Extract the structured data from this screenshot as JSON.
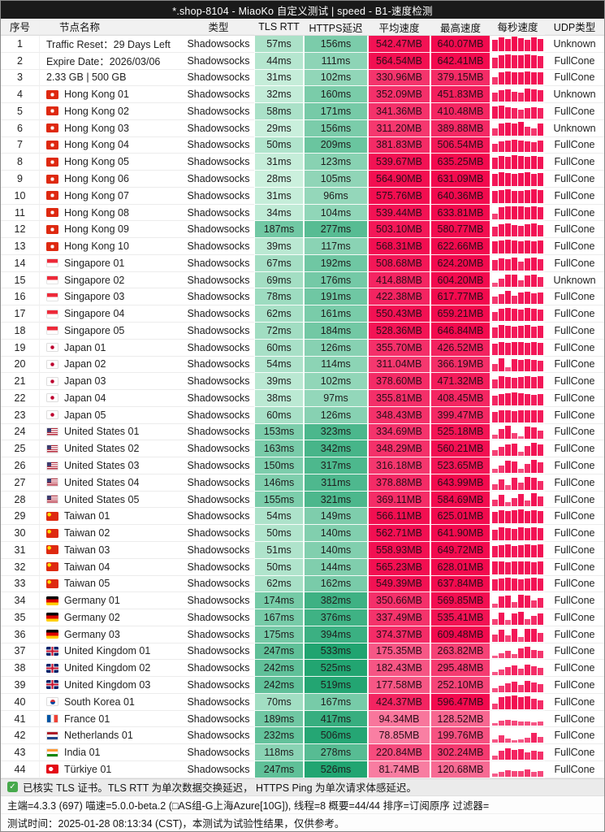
{
  "title": "*.shop-8104 - MiaoKo 自定义测试 | speed - B1-速度检测",
  "columns": {
    "index": "序号",
    "name": "节点名称",
    "type": "类型",
    "tls": "TLS RTT",
    "https": "HTTPS延迟",
    "avg": "平均速度",
    "max": "最高速度",
    "per_second": "每秒速度",
    "udp": "UDP类型"
  },
  "colors": {
    "titlebar_bg": "#1a1a1a",
    "header_bg": "#f1f1f1",
    "latency_scale": [
      "#d9f6e6",
      "#1ea36f"
    ],
    "latency_domain": [
      25,
      545
    ],
    "speed_scale": [
      "#fa9ab6",
      "#f20a4e"
    ],
    "speed_domain": [
      60,
      600
    ],
    "bar_scale": [
      "#f9a2bc",
      "#f20a4e"
    ],
    "check_green": "#47a94c"
  },
  "units": {
    "latency": "ms",
    "speed": "MB"
  },
  "rows": [
    {
      "index": 1,
      "flag": null,
      "name": "Traffic Reset：29 Days Left",
      "type": "Shadowsocks",
      "tls_ms": 57,
      "https_ms": 156,
      "avg_mb": 542.47,
      "max_mb": 640.07,
      "udp": "Unknown",
      "bars": [
        80,
        95,
        85,
        100,
        90,
        78,
        92,
        86
      ]
    },
    {
      "index": 2,
      "flag": null,
      "name": "Expire Date：2026/03/06",
      "type": "Shadowsocks",
      "tls_ms": 44,
      "https_ms": 111,
      "avg_mb": 564.54,
      "max_mb": 642.41,
      "udp": "FullCone",
      "bars": [
        70,
        90,
        95,
        85,
        90,
        95,
        88,
        80
      ]
    },
    {
      "index": 3,
      "flag": null,
      "name": "2.33 GB | 500 GB",
      "type": "Shadowsocks",
      "tls_ms": 31,
      "https_ms": 102,
      "avg_mb": 330.96,
      "max_mb": 379.15,
      "udp": "FullCone",
      "bars": [
        50,
        85,
        90,
        88,
        86,
        90,
        87,
        85
      ]
    },
    {
      "index": 4,
      "flag": "hk",
      "name": "Hong Kong 01",
      "type": "Shadowsocks",
      "tls_ms": 32,
      "https_ms": 160,
      "avg_mb": 352.09,
      "max_mb": 451.83,
      "udp": "Unknown",
      "bars": [
        60,
        80,
        85,
        70,
        65,
        90,
        85,
        80
      ]
    },
    {
      "index": 5,
      "flag": "hk",
      "name": "Hong Kong 02",
      "type": "Shadowsocks",
      "tls_ms": 58,
      "https_ms": 171,
      "avg_mb": 341.36,
      "max_mb": 410.48,
      "udp": "FullCone",
      "bars": [
        85,
        90,
        80,
        70,
        60,
        75,
        80,
        70
      ]
    },
    {
      "index": 6,
      "flag": "hk",
      "name": "Hong Kong 03",
      "type": "Shadowsocks",
      "tls_ms": 29,
      "https_ms": 156,
      "avg_mb": 311.2,
      "max_mb": 389.88,
      "udp": "Unknown",
      "bars": [
        50,
        80,
        90,
        85,
        95,
        60,
        50,
        85
      ]
    },
    {
      "index": 7,
      "flag": "hk",
      "name": "Hong Kong 04",
      "type": "Shadowsocks",
      "tls_ms": 50,
      "https_ms": 209,
      "avg_mb": 381.83,
      "max_mb": 506.54,
      "udp": "FullCone",
      "bars": [
        60,
        75,
        80,
        85,
        80,
        75,
        70,
        80
      ]
    },
    {
      "index": 8,
      "flag": "hk",
      "name": "Hong Kong 05",
      "type": "Shadowsocks",
      "tls_ms": 31,
      "https_ms": 123,
      "avg_mb": 539.67,
      "max_mb": 635.25,
      "udp": "FullCone",
      "bars": [
        80,
        90,
        85,
        95,
        90,
        85,
        90,
        88
      ]
    },
    {
      "index": 9,
      "flag": "hk",
      "name": "Hong Kong 06",
      "type": "Shadowsocks",
      "tls_ms": 28,
      "https_ms": 105,
      "avg_mb": 564.9,
      "max_mb": 631.09,
      "udp": "FullCone",
      "bars": [
        85,
        95,
        90,
        85,
        90,
        95,
        85,
        90
      ]
    },
    {
      "index": 10,
      "flag": "hk",
      "name": "Hong Kong 07",
      "type": "Shadowsocks",
      "tls_ms": 31,
      "https_ms": 96,
      "avg_mb": 575.76,
      "max_mb": 640.36,
      "udp": "FullCone",
      "bars": [
        80,
        90,
        95,
        85,
        80,
        90,
        95,
        90
      ]
    },
    {
      "index": 11,
      "flag": "hk",
      "name": "Hong Kong 08",
      "type": "Shadowsocks",
      "tls_ms": 34,
      "https_ms": 104,
      "avg_mb": 539.44,
      "max_mb": 633.81,
      "udp": "FullCone",
      "bars": [
        40,
        85,
        90,
        95,
        90,
        85,
        90,
        85
      ]
    },
    {
      "index": 12,
      "flag": "hk",
      "name": "Hong Kong 09",
      "type": "Shadowsocks",
      "tls_ms": 187,
      "https_ms": 277,
      "avg_mb": 503.1,
      "max_mb": 580.77,
      "udp": "FullCone",
      "bars": [
        70,
        85,
        90,
        80,
        75,
        85,
        90,
        80
      ]
    },
    {
      "index": 13,
      "flag": "hk",
      "name": "Hong Kong 10",
      "type": "Shadowsocks",
      "tls_ms": 39,
      "https_ms": 117,
      "avg_mb": 568.31,
      "max_mb": 622.66,
      "udp": "FullCone",
      "bars": [
        85,
        90,
        95,
        90,
        85,
        90,
        85,
        90
      ]
    },
    {
      "index": 14,
      "flag": "sg",
      "name": "Singapore 01",
      "type": "Shadowsocks",
      "tls_ms": 67,
      "https_ms": 192,
      "avg_mb": 508.68,
      "max_mb": 624.2,
      "udp": "FullCone",
      "bars": [
        70,
        85,
        80,
        90,
        60,
        85,
        90,
        80
      ]
    },
    {
      "index": 15,
      "flag": "sg",
      "name": "Singapore 02",
      "type": "Shadowsocks",
      "tls_ms": 69,
      "https_ms": 176,
      "avg_mb": 414.88,
      "max_mb": 604.2,
      "udp": "Unknown",
      "bars": [
        30,
        60,
        85,
        90,
        50,
        80,
        85,
        70
      ]
    },
    {
      "index": 16,
      "flag": "sg",
      "name": "Singapore 03",
      "type": "Shadowsocks",
      "tls_ms": 78,
      "https_ms": 191,
      "avg_mb": 422.38,
      "max_mb": 617.77,
      "udp": "FullCone",
      "bars": [
        50,
        70,
        90,
        60,
        80,
        85,
        75,
        80
      ]
    },
    {
      "index": 17,
      "flag": "sg",
      "name": "Singapore 04",
      "type": "Shadowsocks",
      "tls_ms": 62,
      "https_ms": 161,
      "avg_mb": 550.43,
      "max_mb": 659.21,
      "udp": "FullCone",
      "bars": [
        60,
        85,
        90,
        85,
        80,
        90,
        85,
        80
      ]
    },
    {
      "index": 18,
      "flag": "sg",
      "name": "Singapore 05",
      "type": "Shadowsocks",
      "tls_ms": 72,
      "https_ms": 184,
      "avg_mb": 528.36,
      "max_mb": 646.84,
      "udp": "FullCone",
      "bars": [
        70,
        90,
        85,
        80,
        85,
        90,
        80,
        85
      ]
    },
    {
      "index": 19,
      "flag": "jp",
      "name": "Japan 01",
      "type": "Shadowsocks",
      "tls_ms": 60,
      "https_ms": 126,
      "avg_mb": 355.7,
      "max_mb": 426.52,
      "udp": "FullCone",
      "bars": [
        75,
        85,
        80,
        90,
        85,
        80,
        85,
        80
      ]
    },
    {
      "index": 20,
      "flag": "jp",
      "name": "Japan 02",
      "type": "Shadowsocks",
      "tls_ms": 54,
      "https_ms": 114,
      "avg_mb": 311.04,
      "max_mb": 366.19,
      "udp": "FullCone",
      "bars": [
        50,
        90,
        30,
        85,
        80,
        85,
        80,
        75
      ]
    },
    {
      "index": 21,
      "flag": "jp",
      "name": "Japan 03",
      "type": "Shadowsocks",
      "tls_ms": 39,
      "https_ms": 102,
      "avg_mb": 378.6,
      "max_mb": 471.32,
      "udp": "FullCone",
      "bars": [
        60,
        85,
        80,
        75,
        80,
        85,
        80,
        85
      ]
    },
    {
      "index": 22,
      "flag": "jp",
      "name": "Japan 04",
      "type": "Shadowsocks",
      "tls_ms": 38,
      "https_ms": 97,
      "avg_mb": 355.81,
      "max_mb": 408.45,
      "udp": "FullCone",
      "bars": [
        65,
        80,
        85,
        90,
        85,
        80,
        75,
        80
      ]
    },
    {
      "index": 23,
      "flag": "jp",
      "name": "Japan 05",
      "type": "Shadowsocks",
      "tls_ms": 60,
      "https_ms": 126,
      "avg_mb": 348.43,
      "max_mb": 399.47,
      "udp": "FullCone",
      "bars": [
        70,
        85,
        80,
        75,
        85,
        80,
        85,
        80
      ]
    },
    {
      "index": 24,
      "flag": "us",
      "name": "United States 01",
      "type": "Shadowsocks",
      "tls_ms": 153,
      "https_ms": 323,
      "avg_mb": 334.69,
      "max_mb": 525.18,
      "udp": "FullCone",
      "bars": [
        30,
        70,
        90,
        40,
        20,
        85,
        80,
        60
      ]
    },
    {
      "index": 25,
      "flag": "us",
      "name": "United States 02",
      "type": "Shadowsocks",
      "tls_ms": 163,
      "https_ms": 342,
      "avg_mb": 348.29,
      "max_mb": 560.21,
      "udp": "FullCone",
      "bars": [
        40,
        60,
        80,
        85,
        30,
        70,
        90,
        80
      ]
    },
    {
      "index": 26,
      "flag": "us",
      "name": "United States 03",
      "type": "Shadowsocks",
      "tls_ms": 150,
      "https_ms": 317,
      "avg_mb": 316.18,
      "max_mb": 523.65,
      "udp": "FullCone",
      "bars": [
        30,
        50,
        85,
        80,
        30,
        60,
        90,
        70
      ]
    },
    {
      "index": 27,
      "flag": "us",
      "name": "United States 04",
      "type": "Shadowsocks",
      "tls_ms": 146,
      "https_ms": 311,
      "avg_mb": 378.88,
      "max_mb": 643.99,
      "udp": "FullCone",
      "bars": [
        40,
        70,
        30,
        80,
        50,
        90,
        85,
        60
      ]
    },
    {
      "index": 28,
      "flag": "us",
      "name": "United States 05",
      "type": "Shadowsocks",
      "tls_ms": 155,
      "https_ms": 321,
      "avg_mb": 369.11,
      "max_mb": 584.69,
      "udp": "FullCone",
      "bars": [
        50,
        80,
        30,
        60,
        85,
        40,
        90,
        70
      ]
    },
    {
      "index": 29,
      "flag": "tw",
      "name": "Taiwan 01",
      "type": "Shadowsocks",
      "tls_ms": 54,
      "https_ms": 149,
      "avg_mb": 566.11,
      "max_mb": 625.01,
      "udp": "FullCone",
      "bars": [
        80,
        90,
        85,
        90,
        95,
        85,
        90,
        85
      ]
    },
    {
      "index": 30,
      "flag": "tw",
      "name": "Taiwan 02",
      "type": "Shadowsocks",
      "tls_ms": 50,
      "https_ms": 140,
      "avg_mb": 562.71,
      "max_mb": 641.9,
      "udp": "FullCone",
      "bars": [
        75,
        90,
        85,
        80,
        90,
        85,
        90,
        85
      ]
    },
    {
      "index": 31,
      "flag": "tw",
      "name": "Taiwan 03",
      "type": "Shadowsocks",
      "tls_ms": 51,
      "https_ms": 140,
      "avg_mb": 558.93,
      "max_mb": 649.72,
      "udp": "FullCone",
      "bars": [
        80,
        85,
        90,
        80,
        85,
        90,
        85,
        90
      ]
    },
    {
      "index": 32,
      "flag": "tw",
      "name": "Taiwan 04",
      "type": "Shadowsocks",
      "tls_ms": 50,
      "https_ms": 144,
      "avg_mb": 565.23,
      "max_mb": 628.01,
      "udp": "FullCone",
      "bars": [
        85,
        90,
        80,
        85,
        90,
        85,
        80,
        85
      ]
    },
    {
      "index": 33,
      "flag": "tw",
      "name": "Taiwan 05",
      "type": "Shadowsocks",
      "tls_ms": 62,
      "https_ms": 162,
      "avg_mb": 549.39,
      "max_mb": 637.84,
      "udp": "FullCone",
      "bars": [
        80,
        85,
        90,
        85,
        80,
        85,
        90,
        85
      ]
    },
    {
      "index": 34,
      "flag": "de",
      "name": "Germany 01",
      "type": "Shadowsocks",
      "tls_ms": 174,
      "https_ms": 382,
      "avg_mb": 350.66,
      "max_mb": 569.85,
      "udp": "FullCone",
      "bars": [
        30,
        80,
        85,
        40,
        90,
        85,
        50,
        70
      ]
    },
    {
      "index": 35,
      "flag": "de",
      "name": "Germany 02",
      "type": "Shadowsocks",
      "tls_ms": 167,
      "https_ms": 376,
      "avg_mb": 337.49,
      "max_mb": 535.41,
      "udp": "FullCone",
      "bars": [
        40,
        85,
        30,
        80,
        90,
        40,
        60,
        80
      ]
    },
    {
      "index": 36,
      "flag": "de",
      "name": "Germany 03",
      "type": "Shadowsocks",
      "tls_ms": 175,
      "https_ms": 394,
      "avg_mb": 374.37,
      "max_mb": 609.48,
      "udp": "FullCone",
      "bars": [
        50,
        80,
        40,
        85,
        30,
        90,
        85,
        60
      ]
    },
    {
      "index": 37,
      "flag": "gb",
      "name": "United Kingdom 01",
      "type": "Shadowsocks",
      "tls_ms": 247,
      "https_ms": 533,
      "avg_mb": 175.35,
      "max_mb": 263.82,
      "udp": "FullCone",
      "bars": [
        20,
        35,
        50,
        30,
        70,
        80,
        60,
        50
      ]
    },
    {
      "index": 38,
      "flag": "gb",
      "name": "United Kingdom 02",
      "type": "Shadowsocks",
      "tls_ms": 242,
      "https_ms": 525,
      "avg_mb": 182.43,
      "max_mb": 295.48,
      "udp": "FullCone",
      "bars": [
        25,
        40,
        55,
        70,
        45,
        75,
        60,
        50
      ]
    },
    {
      "index": 39,
      "flag": "gb",
      "name": "United Kingdom 03",
      "type": "Shadowsocks",
      "tls_ms": 242,
      "https_ms": 519,
      "avg_mb": 177.58,
      "max_mb": 252.1,
      "udp": "FullCone",
      "bars": [
        30,
        45,
        60,
        75,
        50,
        80,
        65,
        55
      ]
    },
    {
      "index": 40,
      "flag": "kr",
      "name": "South Korea 01",
      "type": "Shadowsocks",
      "tls_ms": 70,
      "https_ms": 167,
      "avg_mb": 424.37,
      "max_mb": 596.47,
      "udp": "FullCone",
      "bars": [
        40,
        80,
        90,
        95,
        85,
        90,
        70,
        60
      ]
    },
    {
      "index": 41,
      "flag": "fr",
      "name": "France 01",
      "type": "Shadowsocks",
      "tls_ms": 189,
      "https_ms": 417,
      "avg_mb": 94.34,
      "max_mb": 128.52,
      "udp": "FullCone",
      "bars": [
        20,
        35,
        40,
        35,
        30,
        30,
        25,
        30
      ]
    },
    {
      "index": 42,
      "flag": "nl",
      "name": "Netherlands 01",
      "type": "Shadowsocks",
      "tls_ms": 232,
      "https_ms": 506,
      "avg_mb": 78.85,
      "max_mb": 199.76,
      "udp": "FullCone",
      "bars": [
        25,
        50,
        30,
        20,
        25,
        35,
        70,
        40
      ]
    },
    {
      "index": 43,
      "flag": "in",
      "name": "India 01",
      "type": "Shadowsocks",
      "tls_ms": 118,
      "https_ms": 278,
      "avg_mb": 220.84,
      "max_mb": 302.24,
      "udp": "FullCone",
      "bars": [
        30,
        60,
        80,
        70,
        75,
        50,
        60,
        55
      ]
    },
    {
      "index": 44,
      "flag": "tr",
      "name": "Türkiye 01",
      "type": "Shadowsocks",
      "tls_ms": 247,
      "https_ms": 526,
      "avg_mb": 81.74,
      "max_mb": 120.68,
      "udp": "FullCone",
      "bars": [
        20,
        30,
        45,
        35,
        40,
        50,
        30,
        35
      ]
    }
  ],
  "footer": {
    "verified": "已核实 TLS 证书。TLS RTT 为单次数据交换延迟， HTTPS Ping 为单次请求体感延迟。",
    "check_glyph": "✓",
    "meta": "主端=4.3.3 (697) 喵速=5.0.0-beta.2 (□AS组-G上海Azure[10G]), 线程=8 概要=44/44 排序=订阅原序 过滤器=",
    "time": "测试时间：2025-01-28 08:13:34 (CST)，本测试为试验性结果，仅供参考。"
  }
}
